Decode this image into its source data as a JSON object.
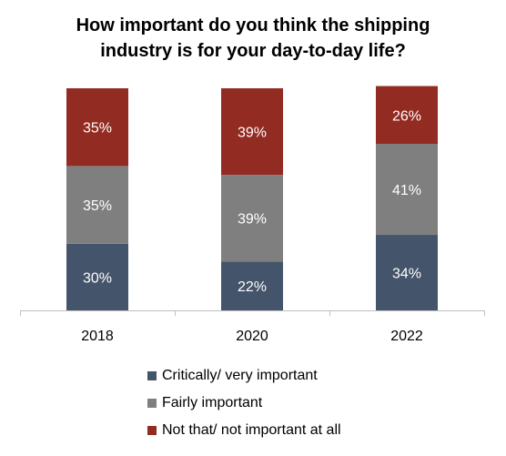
{
  "chart_data": {
    "type": "bar",
    "stacked": true,
    "title": [
      "How important do you think the shipping",
      "industry is for your day-to-day life?"
    ],
    "categories": [
      "2018",
      "2020",
      "2022"
    ],
    "series": [
      {
        "name": "Critically/ very important",
        "values": [
          30,
          22,
          34
        ],
        "color": "#44546A",
        "labels": [
          "30%",
          "22%",
          "34%"
        ]
      },
      {
        "name": "Fairly important",
        "values": [
          35,
          39,
          41
        ],
        "color": "#7F7F7F",
        "labels": [
          "35%",
          "39%",
          "41%"
        ]
      },
      {
        "name": "Not that/ not important at all",
        "values": [
          35,
          39,
          26
        ],
        "color": "#922B21",
        "labels": [
          "35%",
          "39%",
          "26%"
        ]
      }
    ],
    "ylim": [
      0,
      100
    ],
    "grid": false,
    "legend_position": "bottom"
  }
}
